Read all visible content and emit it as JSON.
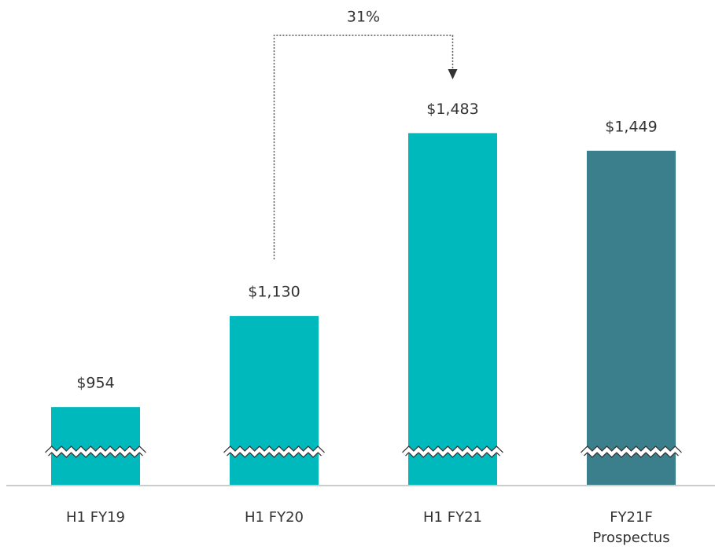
{
  "chart_data": {
    "type": "bar",
    "categories": [
      "H1 FY19",
      "H1 FY20",
      "H1 FY21",
      "FY21F Prospectus"
    ],
    "values": [
      954,
      1130,
      1483,
      1449
    ],
    "value_labels": [
      "$954",
      "$1,130",
      "$1,483",
      "$1,449"
    ],
    "colors": [
      "#00b9bd",
      "#00b9bd",
      "#00b9bd",
      "#3b7f8c"
    ],
    "ylim": [
      804,
      1740
    ],
    "axis_break": true,
    "annotation": "31%"
  }
}
